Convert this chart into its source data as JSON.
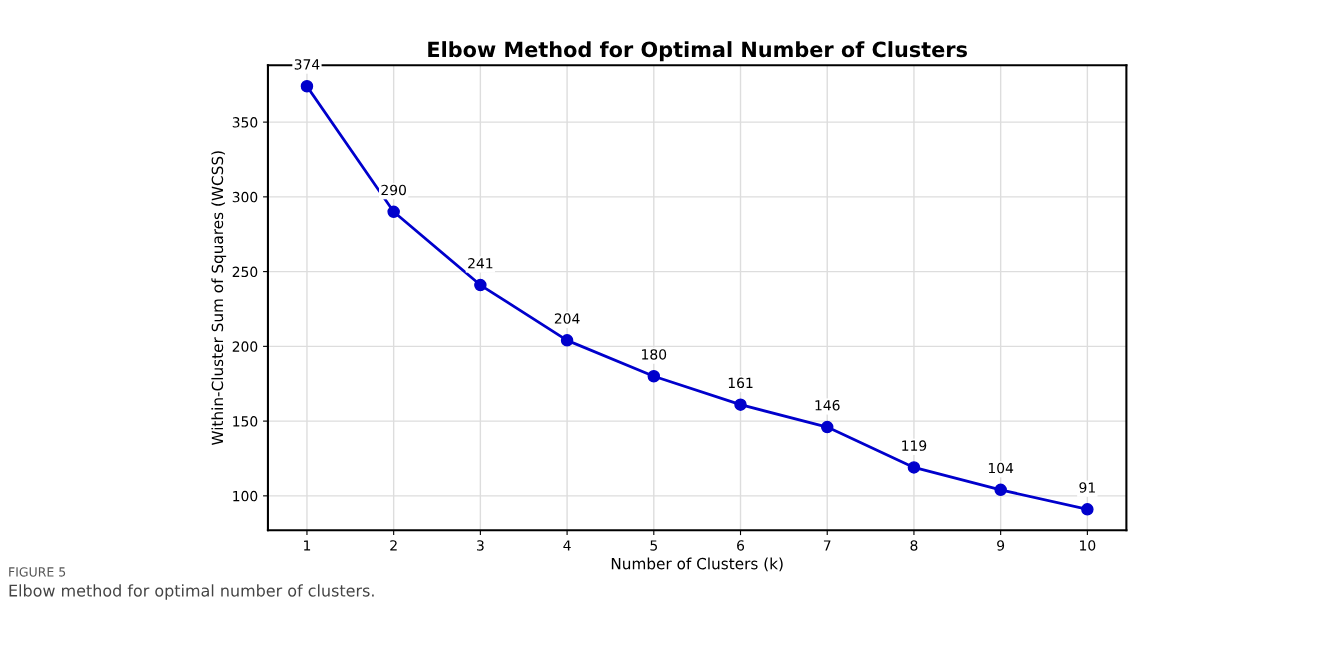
{
  "chart_data": {
    "type": "line",
    "title": "Elbow Method for Optimal Number of Clusters",
    "xlabel": "Number of Clusters (k)",
    "ylabel": "Within-Cluster Sum of Squares (WCSS)",
    "x": [
      1,
      2,
      3,
      4,
      5,
      6,
      7,
      8,
      9,
      10
    ],
    "series": [
      {
        "color": "#0000cc",
        "values": [
          374,
          290,
          241,
          204,
          180,
          161,
          146,
          119,
          104,
          91
        ]
      }
    ],
    "data_labels": true,
    "marker": "circle",
    "line_style": "solid",
    "grid": true,
    "xlim": [
      0.55,
      10.45
    ],
    "xticks": [
      1,
      2,
      3,
      4,
      5,
      6,
      7,
      8,
      9,
      10
    ],
    "ylim": [
      77,
      388
    ],
    "yticks": [
      100,
      150,
      200,
      250,
      300,
      350
    ],
    "annotations": [
      "FIGURE 5",
      "Elbow method for optimal number of clusters."
    ]
  }
}
